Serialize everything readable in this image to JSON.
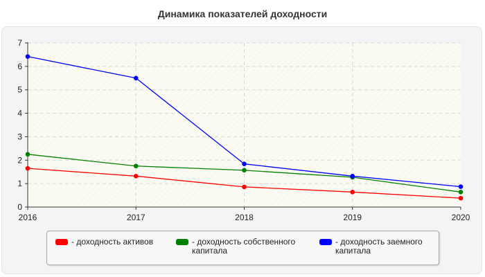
{
  "chart_data": {
    "type": "line",
    "title": "Динамика показателей доходности",
    "x": [
      "2016",
      "2017",
      "2018",
      "2019",
      "2020"
    ],
    "yticks": [
      "0",
      "1",
      "2",
      "3",
      "4",
      "5",
      "6",
      "7"
    ],
    "ylim": [
      0,
      7
    ],
    "grid": true,
    "legend_position": "bottom",
    "series": [
      {
        "name": "- доходность активов",
        "color": "#ff0000",
        "values": [
          1.65,
          1.32,
          0.86,
          0.64,
          0.38
        ]
      },
      {
        "name": "- доходность собственного\nкапитала",
        "color": "#008000",
        "values": [
          2.25,
          1.75,
          1.57,
          1.27,
          0.64
        ]
      },
      {
        "name": "- доходность заемного\nкапитала",
        "color": "#0000ff",
        "values": [
          6.42,
          5.5,
          1.84,
          1.32,
          0.87
        ]
      }
    ]
  }
}
